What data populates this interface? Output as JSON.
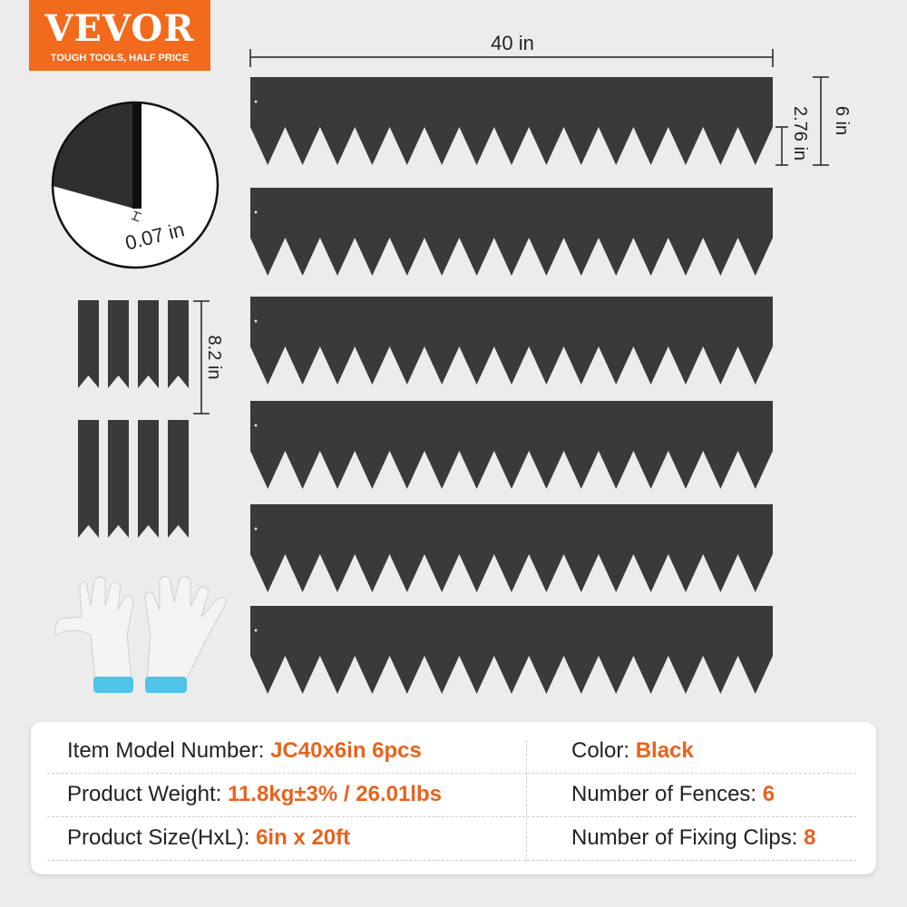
{
  "brand": {
    "name": "VEVOR",
    "tagline": "TOUGH TOOLS, HALF PRICE",
    "color": "#f26a1b"
  },
  "dimensions": {
    "length": "40 in",
    "height": "6 in",
    "tooth_height": "2.76 in",
    "thickness": "0.07 in",
    "clip_length": "8.2 in"
  },
  "product": {
    "fence_count": 6,
    "clip_count": 8,
    "fence_color": "#3a3a3a",
    "accent": "#e8621d"
  },
  "specs": [
    {
      "label": "Item Model Number: ",
      "value": "JC40x6in 6pcs"
    },
    {
      "label": "Color: ",
      "value": "Black"
    },
    {
      "label": "Product Weight: ",
      "value": "11.8kg±3% / 26.01lbs"
    },
    {
      "label": "Number of Fences: ",
      "value": "6"
    },
    {
      "label": "Product Size(HxL): ",
      "value": "6in x 20ft"
    },
    {
      "label": "Number of Fixing Clips: ",
      "value": "8"
    }
  ]
}
